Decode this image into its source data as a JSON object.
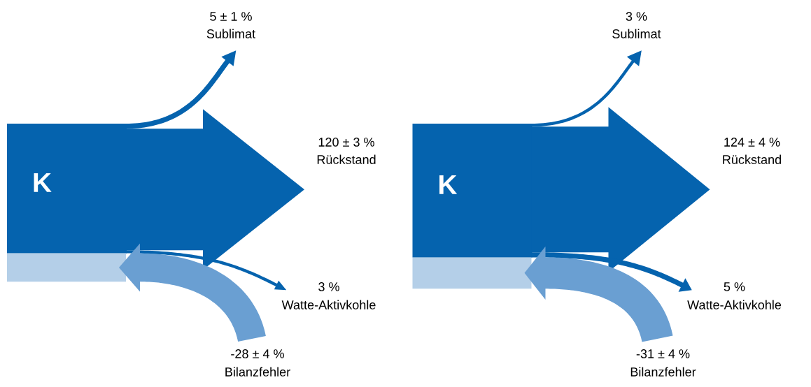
{
  "chart_data": [
    {
      "type": "other",
      "annotations": [
        "K"
      ],
      "categories": [
        "Sublimat",
        "Rückstand",
        "Watte-Aktivkohle",
        "Bilanzfehler"
      ],
      "values": [
        5,
        120,
        3,
        -28
      ],
      "value_labels": [
        "5 ± 1 %",
        "120 ± 3 %",
        "3 %",
        "-28 ± 4 %"
      ],
      "colors": [
        "#0563ae",
        "#0563ae",
        "#0563ae",
        "#6a9fd2"
      ]
    },
    {
      "type": "other",
      "annotations": [
        "K"
      ],
      "categories": [
        "Sublimat",
        "Rückstand",
        "Watte-Aktivkohle",
        "Bilanzfehler"
      ],
      "values": [
        3,
        124,
        5,
        -31
      ],
      "value_labels": [
        "3 %",
        "124 ± 4 %",
        "5 %",
        "-31 ± 4 %"
      ],
      "colors": [
        "#0563ae",
        "#0563ae",
        "#0563ae",
        "#6a9fd2"
      ]
    }
  ]
}
